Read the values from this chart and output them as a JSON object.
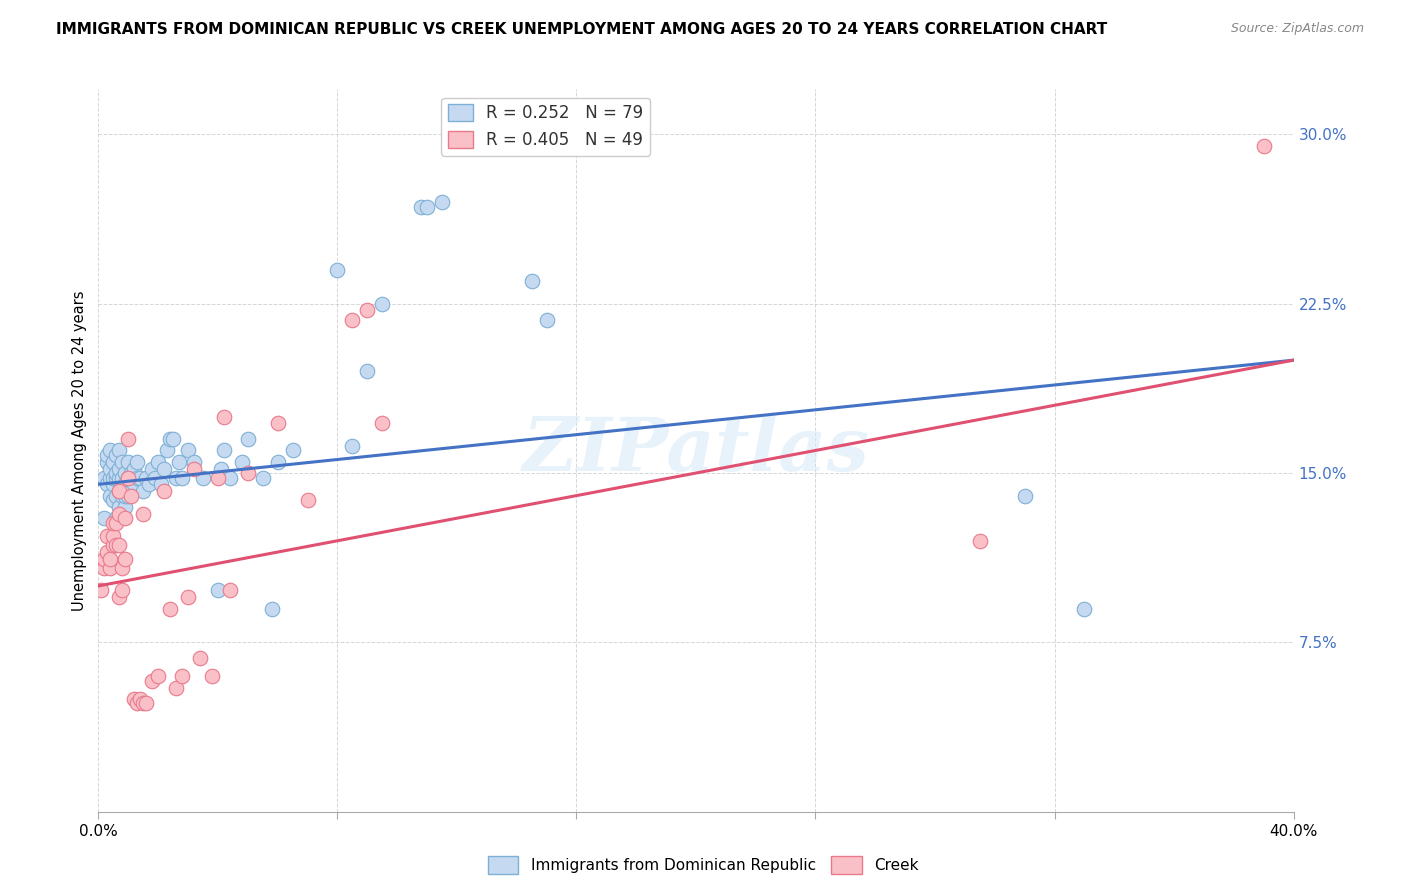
{
  "title": "IMMIGRANTS FROM DOMINICAN REPUBLIC VS CREEK UNEMPLOYMENT AMONG AGES 20 TO 24 YEARS CORRELATION CHART",
  "source": "Source: ZipAtlas.com",
  "ylabel": "Unemployment Among Ages 20 to 24 years",
  "xlim": [
    0.0,
    0.4
  ],
  "ylim": [
    0.0,
    0.32
  ],
  "xticks": [
    0.0,
    0.08,
    0.16,
    0.24,
    0.32,
    0.4
  ],
  "xticklabels": [
    "0.0%",
    "",
    "",
    "",
    "",
    "40.0%"
  ],
  "yticks": [
    0.0,
    0.075,
    0.15,
    0.225,
    0.3
  ],
  "yticklabels": [
    "",
    "7.5%",
    "15.0%",
    "22.5%",
    "30.0%"
  ],
  "blue_color": "#c5d9f1",
  "pink_color": "#f9c0c8",
  "blue_edge_color": "#7eb0d5",
  "pink_edge_color": "#e87a8c",
  "blue_line_color": "#4472c4",
  "pink_line_color": "#e05070",
  "tick_label_color": "#4472c4",
  "watermark": "ZIPatlas",
  "blue_line_y_start": 0.145,
  "blue_line_y_end": 0.2,
  "pink_line_y_start": 0.1,
  "pink_line_y_end": 0.2,
  "blue_points": [
    [
      0.001,
      0.11
    ],
    [
      0.002,
      0.13
    ],
    [
      0.002,
      0.148
    ],
    [
      0.003,
      0.145
    ],
    [
      0.003,
      0.155
    ],
    [
      0.003,
      0.158
    ],
    [
      0.004,
      0.148
    ],
    [
      0.004,
      0.14
    ],
    [
      0.004,
      0.152
    ],
    [
      0.004,
      0.16
    ],
    [
      0.005,
      0.138
    ],
    [
      0.005,
      0.145
    ],
    [
      0.005,
      0.155
    ],
    [
      0.005,
      0.148
    ],
    [
      0.006,
      0.13
    ],
    [
      0.006,
      0.14
    ],
    [
      0.006,
      0.148
    ],
    [
      0.006,
      0.15
    ],
    [
      0.006,
      0.158
    ],
    [
      0.007,
      0.135
    ],
    [
      0.007,
      0.142
    ],
    [
      0.007,
      0.148
    ],
    [
      0.007,
      0.152
    ],
    [
      0.007,
      0.16
    ],
    [
      0.008,
      0.13
    ],
    [
      0.008,
      0.14
    ],
    [
      0.008,
      0.148
    ],
    [
      0.008,
      0.155
    ],
    [
      0.009,
      0.135
    ],
    [
      0.009,
      0.14
    ],
    [
      0.009,
      0.145
    ],
    [
      0.009,
      0.15
    ],
    [
      0.01,
      0.14
    ],
    [
      0.01,
      0.148
    ],
    [
      0.01,
      0.155
    ],
    [
      0.011,
      0.142
    ],
    [
      0.011,
      0.15
    ],
    [
      0.012,
      0.145
    ],
    [
      0.012,
      0.152
    ],
    [
      0.013,
      0.148
    ],
    [
      0.013,
      0.155
    ],
    [
      0.014,
      0.148
    ],
    [
      0.015,
      0.142
    ],
    [
      0.016,
      0.148
    ],
    [
      0.017,
      0.145
    ],
    [
      0.018,
      0.152
    ],
    [
      0.019,
      0.148
    ],
    [
      0.02,
      0.155
    ],
    [
      0.021,
      0.145
    ],
    [
      0.022,
      0.152
    ],
    [
      0.023,
      0.16
    ],
    [
      0.024,
      0.165
    ],
    [
      0.025,
      0.165
    ],
    [
      0.026,
      0.148
    ],
    [
      0.027,
      0.155
    ],
    [
      0.028,
      0.148
    ],
    [
      0.03,
      0.16
    ],
    [
      0.032,
      0.155
    ],
    [
      0.035,
      0.148
    ],
    [
      0.04,
      0.098
    ],
    [
      0.041,
      0.152
    ],
    [
      0.042,
      0.16
    ],
    [
      0.044,
      0.148
    ],
    [
      0.048,
      0.155
    ],
    [
      0.05,
      0.165
    ],
    [
      0.055,
      0.148
    ],
    [
      0.058,
      0.09
    ],
    [
      0.06,
      0.155
    ],
    [
      0.065,
      0.16
    ],
    [
      0.08,
      0.24
    ],
    [
      0.085,
      0.162
    ],
    [
      0.09,
      0.195
    ],
    [
      0.095,
      0.225
    ],
    [
      0.108,
      0.268
    ],
    [
      0.11,
      0.268
    ],
    [
      0.115,
      0.27
    ],
    [
      0.145,
      0.235
    ],
    [
      0.15,
      0.218
    ],
    [
      0.31,
      0.14
    ],
    [
      0.33,
      0.09
    ]
  ],
  "pink_points": [
    [
      0.001,
      0.098
    ],
    [
      0.002,
      0.108
    ],
    [
      0.002,
      0.112
    ],
    [
      0.003,
      0.115
    ],
    [
      0.003,
      0.122
    ],
    [
      0.004,
      0.108
    ],
    [
      0.004,
      0.112
    ],
    [
      0.005,
      0.118
    ],
    [
      0.005,
      0.122
    ],
    [
      0.005,
      0.128
    ],
    [
      0.006,
      0.118
    ],
    [
      0.006,
      0.128
    ],
    [
      0.007,
      0.095
    ],
    [
      0.007,
      0.118
    ],
    [
      0.007,
      0.132
    ],
    [
      0.007,
      0.142
    ],
    [
      0.008,
      0.098
    ],
    [
      0.008,
      0.108
    ],
    [
      0.009,
      0.112
    ],
    [
      0.009,
      0.13
    ],
    [
      0.01,
      0.148
    ],
    [
      0.01,
      0.165
    ],
    [
      0.011,
      0.14
    ],
    [
      0.012,
      0.05
    ],
    [
      0.013,
      0.048
    ],
    [
      0.014,
      0.05
    ],
    [
      0.015,
      0.048
    ],
    [
      0.015,
      0.132
    ],
    [
      0.016,
      0.048
    ],
    [
      0.018,
      0.058
    ],
    [
      0.02,
      0.06
    ],
    [
      0.022,
      0.142
    ],
    [
      0.024,
      0.09
    ],
    [
      0.026,
      0.055
    ],
    [
      0.028,
      0.06
    ],
    [
      0.03,
      0.095
    ],
    [
      0.032,
      0.152
    ],
    [
      0.034,
      0.068
    ],
    [
      0.038,
      0.06
    ],
    [
      0.04,
      0.148
    ],
    [
      0.042,
      0.175
    ],
    [
      0.044,
      0.098
    ],
    [
      0.05,
      0.15
    ],
    [
      0.06,
      0.172
    ],
    [
      0.07,
      0.138
    ],
    [
      0.085,
      0.218
    ],
    [
      0.09,
      0.222
    ],
    [
      0.095,
      0.172
    ],
    [
      0.295,
      0.12
    ],
    [
      0.39,
      0.295
    ]
  ]
}
